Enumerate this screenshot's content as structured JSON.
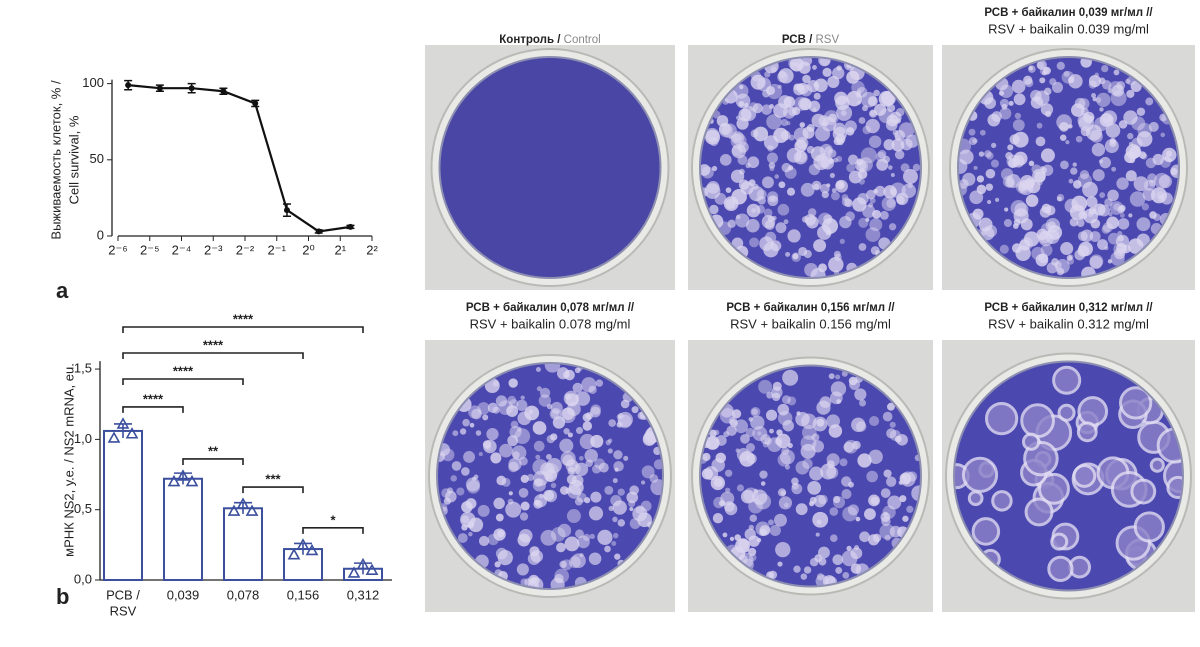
{
  "panel_labels": [
    "a",
    "b"
  ],
  "chart_data": [
    {
      "type": "line",
      "ylabel": [
        "Выживаемость клеток, % /",
        "Cell survival, %"
      ],
      "x": [
        0.0195,
        0.039,
        0.078,
        0.156,
        0.3125,
        0.625,
        1.25,
        2.5
      ],
      "values": [
        99,
        97,
        97,
        95,
        87,
        17,
        3,
        6
      ],
      "errors": [
        3,
        2,
        3,
        2,
        2,
        4,
        1,
        1
      ],
      "color": "#111111",
      "xscale": "log",
      "xbase": 2,
      "xlim": [
        0.015625,
        4
      ],
      "xticks": [
        {
          "value": 0.015625,
          "label": "2⁻⁶"
        },
        {
          "value": 0.03125,
          "label": "2⁻⁵"
        },
        {
          "value": 0.0625,
          "label": "2⁻⁴"
        },
        {
          "value": 0.125,
          "label": "2⁻³"
        },
        {
          "value": 0.25,
          "label": "2⁻²"
        },
        {
          "value": 0.5,
          "label": "2⁻¹"
        },
        {
          "value": 1,
          "label": "2⁰"
        },
        {
          "value": 2,
          "label": "2¹"
        },
        {
          "value": 4,
          "label": "2²"
        }
      ],
      "ylim": [
        0,
        105
      ],
      "yticks": [
        0,
        50,
        100
      ]
    },
    {
      "type": "bar",
      "ylabel": "мРНК NS2, у.е. / NS2 mRNA, eu.",
      "categories": [
        "РСВ /",
        "0,039",
        "0,078",
        "0,156",
        "0,312"
      ],
      "first_category_translation": "RSV",
      "values": [
        1.06,
        0.72,
        0.51,
        0.22,
        0.08
      ],
      "errors": [
        0.05,
        0.04,
        0.04,
        0.04,
        0.04
      ],
      "points": [
        [
          1.01,
          1.11,
          1.04
        ],
        [
          0.7,
          0.74,
          0.7
        ],
        [
          0.49,
          0.54,
          0.49
        ],
        [
          0.18,
          0.25,
          0.21
        ],
        [
          0.05,
          0.11,
          0.07
        ]
      ],
      "color": "#3b4f9e",
      "ylim": [
        0,
        1.6
      ],
      "yticks": [
        {
          "value": 0,
          "label": "0,0"
        },
        {
          "value": 0.5,
          "label": "0,5"
        },
        {
          "value": 1,
          "label": "1,0"
        },
        {
          "value": 1.5,
          "label": "1,5"
        }
      ],
      "comparisons": [
        {
          "from": 0,
          "to": 1,
          "label": "****"
        },
        {
          "from": 1,
          "to": 2,
          "label": "**"
        },
        {
          "from": 2,
          "to": 3,
          "label": "***"
        },
        {
          "from": 3,
          "to": 4,
          "label": "*"
        },
        {
          "from": 0,
          "to": 2,
          "label": "****"
        },
        {
          "from": 0,
          "to": 3,
          "label": "****"
        },
        {
          "from": 0,
          "to": 4,
          "label": "****"
        }
      ]
    }
  ],
  "images": [
    {
      "caption_ru": "Контроль /",
      "caption_en": "Control"
    },
    {
      "caption_ru": "РСВ /",
      "caption_en": "RSV"
    },
    {
      "caption_ru": "РСВ + байкалин 0,039 мг/мл //",
      "caption_en": "RSV + baikalin 0.039 mg/ml"
    },
    {
      "caption_ru": "РСВ + байкалин 0,078 мг/мл //",
      "caption_en": "RSV + baikalin 0.078 mg/ml"
    },
    {
      "caption_ru": "РСВ + байкалин 0,156 мг/мл //",
      "caption_en": "RSV + baikalin 0.156 mg/ml"
    },
    {
      "caption_ru": "РСВ + байкалин 0,312 мг/мл //",
      "caption_en": "RSV + baikalin 0.312 mg/ml"
    }
  ]
}
